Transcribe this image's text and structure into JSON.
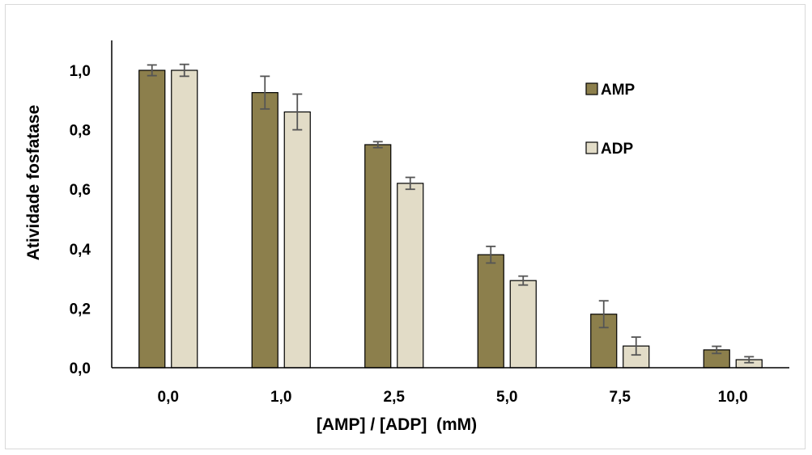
{
  "chart_data": {
    "type": "bar",
    "title": "",
    "xlabel": "[AMP] / [ADP]  (mM)",
    "ylabel": "Atividade fosfatase",
    "categories": [
      "0,0",
      "1,0",
      "2,5",
      "5,0",
      "7,5",
      "10,0"
    ],
    "yticks": [
      "0,0",
      "0,2",
      "0,4",
      "0,6",
      "0,8",
      "1,0"
    ],
    "ylim": [
      0,
      1.1
    ],
    "grid": false,
    "legend_position": "top-right",
    "series": [
      {
        "name": "AMP",
        "color": "#8c7f4c",
        "values": [
          1.0,
          0.925,
          0.75,
          0.38,
          0.18,
          0.06
        ],
        "errors": [
          0.018,
          0.055,
          0.01,
          0.028,
          0.045,
          0.012
        ]
      },
      {
        "name": "ADP",
        "values_note": "",
        "color": "#e2dcc7",
        "values": [
          1.0,
          0.86,
          0.62,
          0.293,
          0.073,
          0.027
        ],
        "errors": [
          0.02,
          0.06,
          0.02,
          0.015,
          0.03,
          0.01
        ]
      }
    ]
  }
}
